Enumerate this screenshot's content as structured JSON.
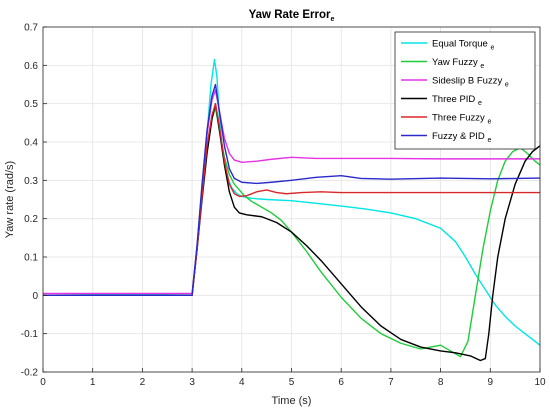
{
  "chart_data": {
    "type": "line",
    "title": "Yaw Rate Error",
    "title_subscript": "e",
    "xlabel": "Time (s)",
    "ylabel": "Yaw rate (rad/s)",
    "xlim": [
      0,
      10
    ],
    "ylim": [
      -0.2,
      0.7
    ],
    "xticks": [
      0,
      1,
      2,
      3,
      4,
      5,
      6,
      7,
      8,
      9,
      10
    ],
    "yticks": [
      -0.2,
      -0.1,
      0,
      0.1,
      0.2,
      0.3,
      0.4,
      0.5,
      0.6,
      0.7
    ],
    "grid": true,
    "legend_position": "top-right",
    "series": [
      {
        "name": "Equal Torque",
        "subscript": "e",
        "color": "#00e5e5",
        "points": [
          [
            0,
            0
          ],
          [
            3,
            0.005
          ],
          [
            3.1,
            0.13
          ],
          [
            3.2,
            0.28
          ],
          [
            3.3,
            0.42
          ],
          [
            3.38,
            0.55
          ],
          [
            3.45,
            0.615
          ],
          [
            3.5,
            0.57
          ],
          [
            3.55,
            0.46
          ],
          [
            3.62,
            0.37
          ],
          [
            3.7,
            0.31
          ],
          [
            3.8,
            0.28
          ],
          [
            3.9,
            0.265
          ],
          [
            4.0,
            0.258
          ],
          [
            4.2,
            0.253
          ],
          [
            4.5,
            0.25
          ],
          [
            5,
            0.247
          ],
          [
            5.5,
            0.24
          ],
          [
            6,
            0.233
          ],
          [
            6.5,
            0.225
          ],
          [
            7,
            0.215
          ],
          [
            7.5,
            0.2
          ],
          [
            8,
            0.175
          ],
          [
            8.3,
            0.14
          ],
          [
            8.5,
            0.1
          ],
          [
            8.7,
            0.055
          ],
          [
            8.9,
            0.015
          ],
          [
            9.1,
            -0.025
          ],
          [
            9.3,
            -0.055
          ],
          [
            9.5,
            -0.08
          ],
          [
            9.7,
            -0.1
          ],
          [
            9.85,
            -0.115
          ],
          [
            10,
            -0.13
          ]
        ]
      },
      {
        "name": "Yaw Fuzzy",
        "subscript": "e",
        "color": "#1fcc3a",
        "points": [
          [
            0,
            0
          ],
          [
            3,
            0
          ],
          [
            3.1,
            0.12
          ],
          [
            3.2,
            0.26
          ],
          [
            3.3,
            0.38
          ],
          [
            3.4,
            0.46
          ],
          [
            3.47,
            0.49
          ],
          [
            3.55,
            0.43
          ],
          [
            3.65,
            0.36
          ],
          [
            3.75,
            0.315
          ],
          [
            3.85,
            0.29
          ],
          [
            3.95,
            0.275
          ],
          [
            4.05,
            0.26
          ],
          [
            4.2,
            0.245
          ],
          [
            4.4,
            0.23
          ],
          [
            4.6,
            0.215
          ],
          [
            4.8,
            0.195
          ],
          [
            5,
            0.165
          ],
          [
            5.3,
            0.115
          ],
          [
            5.6,
            0.06
          ],
          [
            6,
            -0.005
          ],
          [
            6.4,
            -0.06
          ],
          [
            6.8,
            -0.1
          ],
          [
            7.2,
            -0.125
          ],
          [
            7.6,
            -0.14
          ],
          [
            7.8,
            -0.135
          ],
          [
            8,
            -0.13
          ],
          [
            8.2,
            -0.145
          ],
          [
            8.4,
            -0.16
          ],
          [
            8.55,
            -0.12
          ],
          [
            8.7,
            0
          ],
          [
            8.85,
            0.12
          ],
          [
            9,
            0.22
          ],
          [
            9.15,
            0.3
          ],
          [
            9.3,
            0.35
          ],
          [
            9.45,
            0.375
          ],
          [
            9.6,
            0.385
          ],
          [
            9.75,
            0.37
          ],
          [
            9.9,
            0.35
          ],
          [
            10,
            0.34
          ]
        ]
      },
      {
        "name": "Sideslip B Fuzzy",
        "subscript": "e",
        "color": "#e533e5",
        "points": [
          [
            0,
            0.005
          ],
          [
            3,
            0.005
          ],
          [
            3.1,
            0.13
          ],
          [
            3.2,
            0.28
          ],
          [
            3.3,
            0.42
          ],
          [
            3.4,
            0.51
          ],
          [
            3.47,
            0.535
          ],
          [
            3.55,
            0.48
          ],
          [
            3.65,
            0.41
          ],
          [
            3.75,
            0.37
          ],
          [
            3.85,
            0.353
          ],
          [
            4,
            0.347
          ],
          [
            4.3,
            0.35
          ],
          [
            4.6,
            0.355
          ],
          [
            5,
            0.36
          ],
          [
            5.5,
            0.357
          ],
          [
            6,
            0.357
          ],
          [
            7,
            0.357
          ],
          [
            8,
            0.356
          ],
          [
            9,
            0.356
          ],
          [
            10,
            0.356
          ]
        ]
      },
      {
        "name": "Three PID",
        "subscript": "e",
        "color": "#000000",
        "points": [
          [
            0,
            0
          ],
          [
            3,
            0
          ],
          [
            3.1,
            0.12
          ],
          [
            3.2,
            0.25
          ],
          [
            3.3,
            0.37
          ],
          [
            3.4,
            0.46
          ],
          [
            3.47,
            0.5
          ],
          [
            3.55,
            0.43
          ],
          [
            3.65,
            0.34
          ],
          [
            3.75,
            0.27
          ],
          [
            3.85,
            0.23
          ],
          [
            3.95,
            0.215
          ],
          [
            4.1,
            0.21
          ],
          [
            4.4,
            0.205
          ],
          [
            4.7,
            0.19
          ],
          [
            5,
            0.165
          ],
          [
            5.3,
            0.13
          ],
          [
            5.6,
            0.09
          ],
          [
            6,
            0.03
          ],
          [
            6.4,
            -0.03
          ],
          [
            6.8,
            -0.08
          ],
          [
            7.2,
            -0.115
          ],
          [
            7.6,
            -0.135
          ],
          [
            8,
            -0.145
          ],
          [
            8.3,
            -0.15
          ],
          [
            8.6,
            -0.158
          ],
          [
            8.8,
            -0.17
          ],
          [
            8.9,
            -0.165
          ],
          [
            8.97,
            -0.1
          ],
          [
            9.05,
            0
          ],
          [
            9.15,
            0.1
          ],
          [
            9.3,
            0.2
          ],
          [
            9.5,
            0.29
          ],
          [
            9.7,
            0.35
          ],
          [
            9.85,
            0.375
          ],
          [
            10,
            0.39
          ]
        ]
      },
      {
        "name": "Three Fuzzy",
        "subscript": "e",
        "color": "#d9282a",
        "points": [
          [
            0,
            0
          ],
          [
            3,
            0
          ],
          [
            3.1,
            0.12
          ],
          [
            3.2,
            0.26
          ],
          [
            3.3,
            0.39
          ],
          [
            3.4,
            0.47
          ],
          [
            3.47,
            0.5
          ],
          [
            3.55,
            0.44
          ],
          [
            3.65,
            0.35
          ],
          [
            3.75,
            0.29
          ],
          [
            3.85,
            0.265
          ],
          [
            3.95,
            0.258
          ],
          [
            4.1,
            0.26
          ],
          [
            4.3,
            0.27
          ],
          [
            4.5,
            0.275
          ],
          [
            4.7,
            0.268
          ],
          [
            4.9,
            0.265
          ],
          [
            5.2,
            0.268
          ],
          [
            5.6,
            0.27
          ],
          [
            6,
            0.268
          ],
          [
            7,
            0.268
          ],
          [
            8,
            0.268
          ],
          [
            9,
            0.268
          ],
          [
            10,
            0.268
          ]
        ]
      },
      {
        "name": "Fuzzy & PID",
        "subscript": "e",
        "color": "#2a2acc",
        "points": [
          [
            0,
            0
          ],
          [
            3,
            0
          ],
          [
            3.1,
            0.13
          ],
          [
            3.2,
            0.29
          ],
          [
            3.3,
            0.43
          ],
          [
            3.4,
            0.52
          ],
          [
            3.47,
            0.55
          ],
          [
            3.55,
            0.48
          ],
          [
            3.65,
            0.39
          ],
          [
            3.75,
            0.33
          ],
          [
            3.85,
            0.305
          ],
          [
            4,
            0.295
          ],
          [
            4.3,
            0.292
          ],
          [
            4.6,
            0.295
          ],
          [
            5,
            0.3
          ],
          [
            5.5,
            0.308
          ],
          [
            6,
            0.312
          ],
          [
            6.4,
            0.305
          ],
          [
            7,
            0.303
          ],
          [
            8,
            0.306
          ],
          [
            9,
            0.304
          ],
          [
            10,
            0.306
          ]
        ]
      }
    ]
  }
}
